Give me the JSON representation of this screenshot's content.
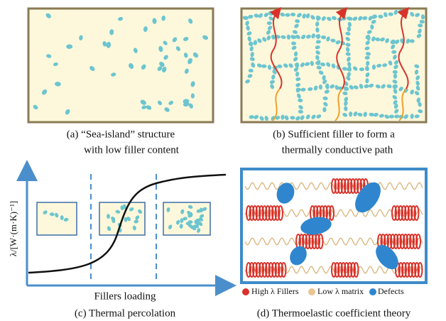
{
  "panels": {
    "a": {
      "caption": [
        "(a) “Sea-island” structure",
        "with low filler content"
      ]
    },
    "b": {
      "caption": [
        "(b) Sufficient filler to form a",
        "thermally conductive path"
      ]
    },
    "c": {
      "y_label": "λ/[W·(m·K)⁻¹]",
      "x_label": "Fillers loading",
      "caption": [
        "(c) Thermal percolation"
      ]
    },
    "d": {
      "legend": [
        "High λ Fillers",
        "Low λ matrix",
        "Defects"
      ],
      "caption": [
        "(d) Thermoelastic coefficient theory"
      ]
    }
  }
}
